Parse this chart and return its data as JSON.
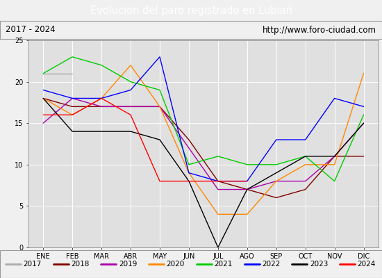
{
  "title": "Evolucion del paro registrado en Lubiań",
  "subtitle_left": "2017 - 2024",
  "subtitle_right": "http://www.foro-ciudad.com",
  "ylim": [
    0,
    25
  ],
  "yticks": [
    0,
    5,
    10,
    15,
    20,
    25
  ],
  "months": [
    "ENE",
    "FEB",
    "MAR",
    "ABR",
    "MAY",
    "JUN",
    "JUL",
    "AGO",
    "SEP",
    "OCT",
    "NOV",
    "DIC"
  ],
  "series": {
    "2017": {
      "color": "#aaaaaa",
      "data": [
        21,
        21,
        null,
        null,
        null,
        null,
        null,
        null,
        null,
        null,
        null,
        null
      ]
    },
    "2018": {
      "color": "#800000",
      "data": [
        18,
        17,
        17,
        17,
        17,
        13,
        8,
        7,
        6,
        7,
        11,
        11
      ]
    },
    "2019": {
      "color": "#aa00aa",
      "data": [
        15,
        18,
        17,
        17,
        17,
        12,
        7,
        7,
        8,
        8,
        11,
        15
      ]
    },
    "2020": {
      "color": "#ff8800",
      "data": [
        18,
        16,
        18,
        22,
        17,
        9,
        4,
        4,
        8,
        10,
        10,
        21
      ]
    },
    "2021": {
      "color": "#00cc00",
      "data": [
        21,
        23,
        22,
        20,
        19,
        10,
        11,
        10,
        10,
        11,
        8,
        16
      ]
    },
    "2022": {
      "color": "#0000ff",
      "data": [
        19,
        18,
        18,
        19,
        23,
        9,
        8,
        8,
        13,
        13,
        18,
        17
      ]
    },
    "2023": {
      "color": "#000000",
      "data": [
        18,
        14,
        14,
        14,
        13,
        8,
        0,
        7,
        null,
        11,
        11,
        15
      ]
    },
    "2024": {
      "color": "#ff0000",
      "data": [
        16,
        16,
        18,
        16,
        8,
        8,
        8,
        8,
        null,
        null,
        null,
        null
      ]
    }
  },
  "background_color": "#f0f0f0",
  "plot_background": "#e0e0e0",
  "title_bg": "#4472c4",
  "title_color": "white",
  "grid_color": "white",
  "legend_bg": "#f0f0f0"
}
